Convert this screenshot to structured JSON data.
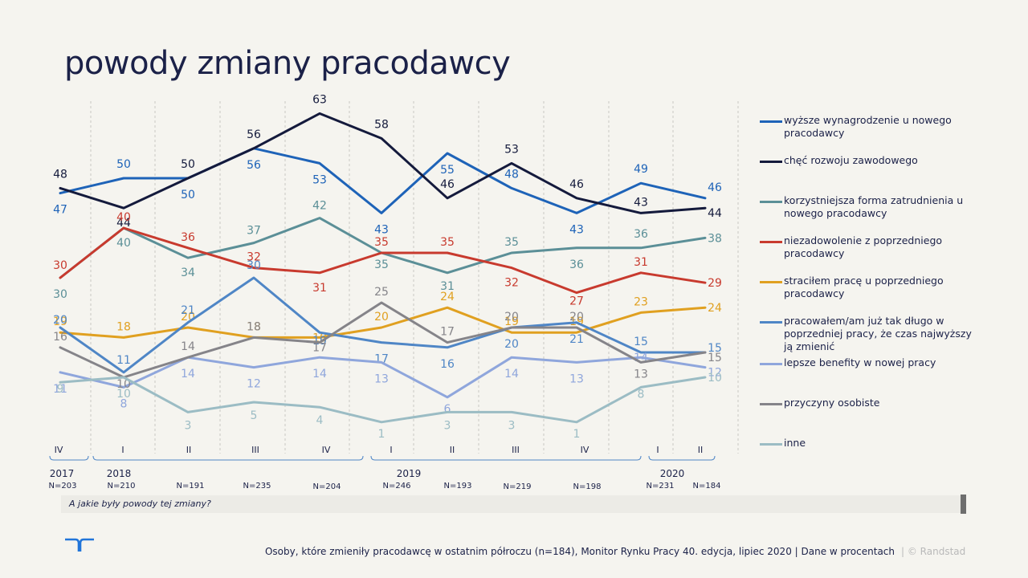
{
  "title": "powody zmiany pracodawcy",
  "question": "A jakie były powody tej zmiany?",
  "footer": "Osoby,  które zmieniły pracodawcę  w ostatnim półroczu (n=184),  Monitor Rynku Pracy 40. edycja, lipiec 2020 | Dane w procentach",
  "copyright": "| © Randstad",
  "periods": [
    "IV",
    "I",
    "II",
    "III",
    "IV",
    "I",
    "II",
    "III",
    "IV",
    "I",
    "II"
  ],
  "sample_sizes": [
    "N=203",
    "N=210",
    "N=191",
    "N=235",
    "N=204",
    "N=246",
    "N=193",
    "N=219",
    "N=198",
    "N=231",
    "N=184"
  ],
  "years": [
    "2017",
    "2018",
    "2019",
    "2020"
  ],
  "chart_data": {
    "type": "line",
    "x": [
      "IV 2017",
      "I 2018",
      "II 2018",
      "III 2018",
      "IV 2018",
      "I 2019",
      "II 2019",
      "III 2019",
      "IV 2019",
      "I 2020",
      "II 2020"
    ],
    "ylim": [
      0,
      70
    ],
    "series": [
      {
        "name": "wyższe wynagrodzenie u nowego pracodawcy",
        "color": "#1e63b8",
        "values": [
          47,
          50,
          50,
          56,
          53,
          43,
          55,
          48,
          43,
          49,
          46
        ]
      },
      {
        "name": "chęć rozwoju zawodowego",
        "color": "#141a3c",
        "values": [
          48,
          44,
          50,
          56,
          63,
          58,
          46,
          53,
          46,
          43,
          44
        ]
      },
      {
        "name": "korzystniejsza forma zatrudnienia u nowego pracodawcy",
        "color": "#5b8f97",
        "values": [
          30,
          40,
          34,
          37,
          42,
          35,
          31,
          35,
          36,
          36,
          38
        ]
      },
      {
        "name": "niezadowolenie z poprzedniego pracodawcy",
        "color": "#c83a2e",
        "values": [
          30,
          40,
          36,
          32,
          31,
          35,
          35,
          32,
          27,
          31,
          29
        ]
      },
      {
        "name": "straciłem pracę u poprzedniego pracodawcy",
        "color": "#e0a020",
        "values": [
          19,
          18,
          20,
          18,
          18,
          20,
          24,
          19,
          19,
          23,
          24
        ]
      },
      {
        "name": "pracowałem/am już tak długo w poprzedniej pracy, że czas najwyższy ją zmienić",
        "color": "#4f86c6",
        "values": [
          20,
          11,
          21,
          30,
          19,
          17,
          16,
          20,
          21,
          15,
          15
        ]
      },
      {
        "name": "lepsze benefity w nowej pracy",
        "color": "#8fa6dc",
        "values": [
          11,
          8,
          14,
          12,
          14,
          13,
          6,
          14,
          13,
          14,
          12
        ]
      },
      {
        "name": "przyczyny osobiste",
        "color": "#858489",
        "values": [
          16,
          10,
          14,
          18,
          17,
          25,
          17,
          20,
          20,
          13,
          15
        ]
      },
      {
        "name": "inne",
        "color": "#9bbcc4",
        "values": [
          9,
          10,
          3,
          5,
          4,
          1,
          3,
          3,
          1,
          8,
          10
        ]
      }
    ]
  }
}
